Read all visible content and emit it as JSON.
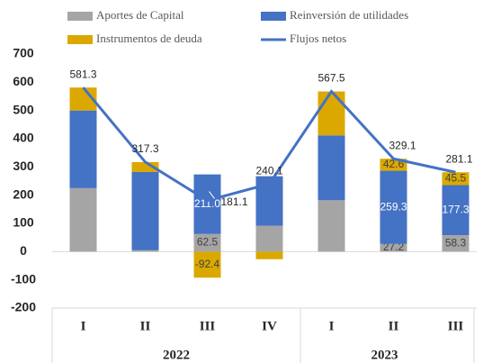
{
  "chart_data": {
    "type": "stacked-bar-line",
    "categories": [
      "I",
      "II",
      "III",
      "IV",
      "I",
      "II",
      "III"
    ],
    "groups": [
      {
        "label": "2022",
        "size": 4
      },
      {
        "label": "2023",
        "size": 3
      }
    ],
    "series": [
      {
        "name": "Aportes de Capital",
        "color": "#a5a5a5",
        "values": [
          225,
          5,
          62.5,
          92,
          182,
          27.2,
          58.3
        ],
        "value_labels": [
          null,
          null,
          "62.5",
          null,
          null,
          "27.2",
          "58.3"
        ]
      },
      {
        "name": "Reinversión de utilidades",
        "color": "#4472c4",
        "values": [
          275,
          277,
          211,
          175.1,
          230,
          259.3,
          177.3
        ],
        "value_labels": [
          null,
          null,
          "211.0",
          null,
          null,
          "259.3",
          "177.3"
        ]
      },
      {
        "name": "Instrumentos de deuda",
        "color": "#dba800",
        "values": [
          81.3,
          35.3,
          -92.4,
          -27,
          155.5,
          42.6,
          45.5
        ],
        "value_labels": [
          null,
          null,
          "-92.4",
          null,
          null,
          "42.6",
          "45.5"
        ]
      }
    ],
    "line": {
      "name": "Flujos netos",
      "color": "#4472c4",
      "values": [
        581.3,
        317.3,
        181.1,
        240.1,
        567.5,
        329.1,
        281.1
      ]
    },
    "ylim": [
      -200,
      700
    ],
    "yticks": [
      -200,
      -100,
      0,
      100,
      200,
      300,
      400,
      500,
      600,
      700
    ]
  }
}
